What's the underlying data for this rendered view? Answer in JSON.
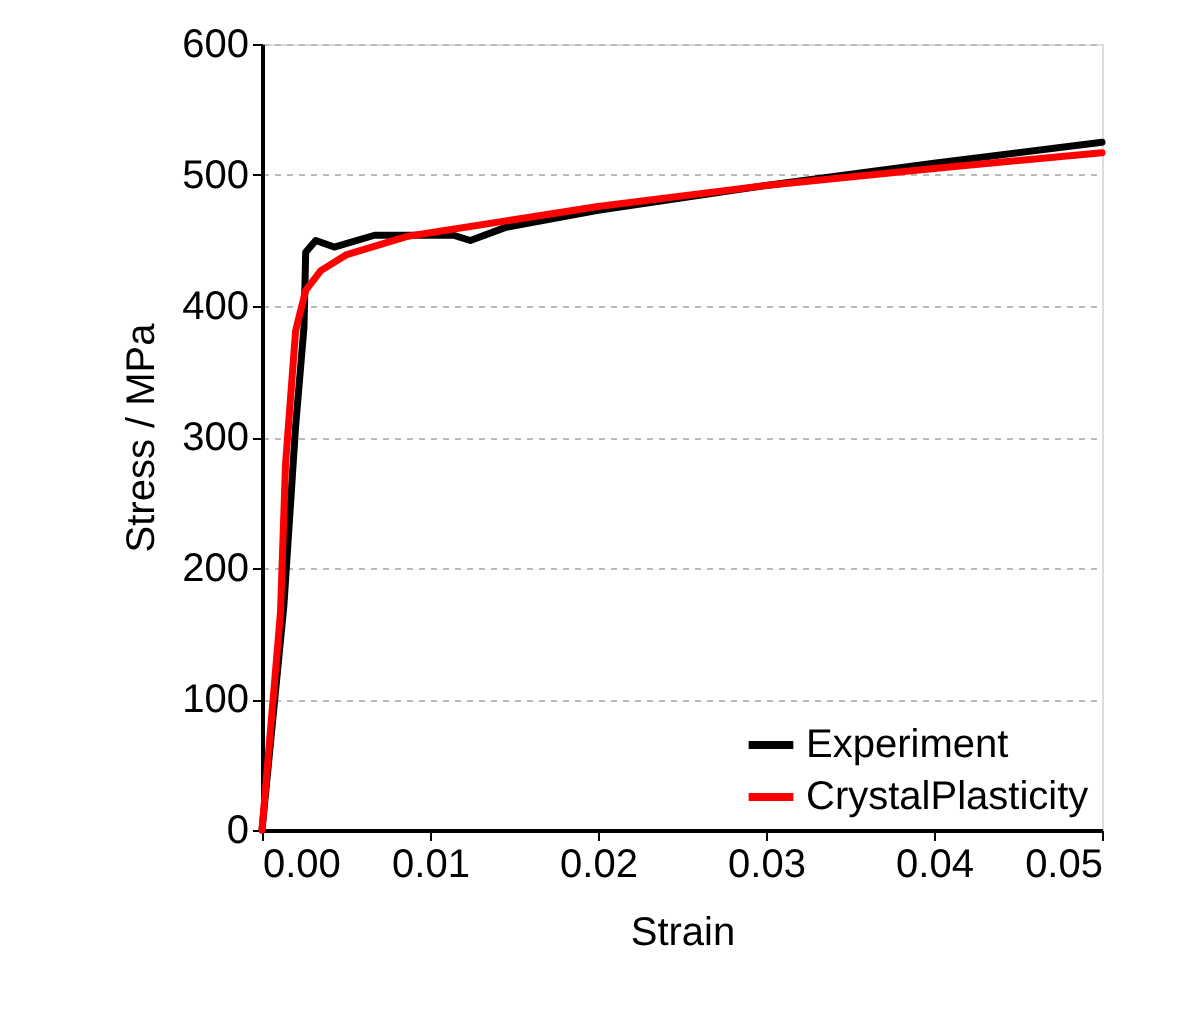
{
  "chart_data": {
    "type": "line",
    "xlabel": "Strain",
    "ylabel": "Stress / MPa",
    "xlim": [
      0,
      0.05
    ],
    "xticks": [
      {
        "value": 0,
        "label": "0.00"
      },
      {
        "value": 0.01,
        "label": "0.01"
      },
      {
        "value": 0.02,
        "label": "0.02"
      },
      {
        "value": 0.03,
        "label": "0.03"
      },
      {
        "value": 0.04,
        "label": "0.04"
      },
      {
        "value": 0.05,
        "label": "0.05"
      }
    ],
    "ylim": [
      0,
      600
    ],
    "yticks": [
      0,
      100,
      200,
      300,
      400,
      500,
      600
    ],
    "grid": "y",
    "legend": "bottom right",
    "marker": "none",
    "line_style": "solid",
    "series": [
      {
        "name": "Experiment",
        "color": "#000000",
        "x": [
          0,
          0.0013,
          0.002,
          0.0025,
          0.0026,
          0.0032,
          0.0043,
          0.0067,
          0.0114,
          0.0124,
          0.0145,
          0.02,
          0.03,
          0.04,
          0.05
        ],
        "values": [
          0,
          171,
          308,
          384,
          441,
          450,
          445,
          454,
          454,
          450,
          460,
          473,
          492,
          509,
          525
        ]
      },
      {
        "name": "CrystalPlasticity",
        "color": "#ff0000",
        "x": [
          0,
          0.0011,
          0.0014,
          0.002,
          0.0026,
          0.0035,
          0.005,
          0.0086,
          0.02,
          0.03,
          0.04,
          0.05
        ],
        "values": [
          0,
          166,
          279,
          381,
          412,
          427,
          439,
          453,
          476,
          492,
          505,
          517
        ]
      }
    ]
  }
}
